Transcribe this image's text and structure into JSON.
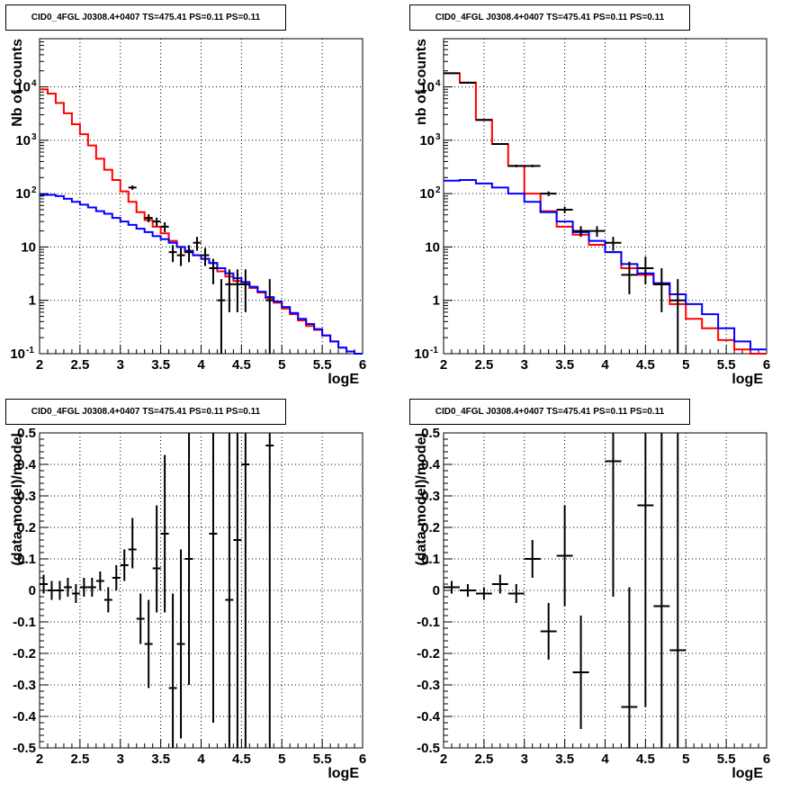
{
  "panels": [
    {
      "title": "CID0_4FGL J0308.4+0407 TS=475.41 PS=0.11 PS=0.11"
    },
    {
      "title": "CID0_4FGL J0308.4+0407 TS=475.41 PS=0.11 PS=0.11"
    },
    {
      "title": "CID0_4FGL J0308.4+0407 TS=475.41 PS=0.11 PS=0.11"
    },
    {
      "title": "CID0_4FGL J0308.4+0407 TS=475.41 PS=0.11 PS=0.11"
    }
  ],
  "colors": {
    "total_model": "#ff0000",
    "background_model": "#0000ff",
    "data": "#000000"
  },
  "chart_data": [
    {
      "type": "line",
      "title": "CID0_4FGL J0308.4+0407 TS=475.41 PS=0.11 PS=0.11",
      "xlabel": "logE",
      "ylabel": "Nb of counts",
      "xlim": [
        2,
        6
      ],
      "ylim": [
        0.1,
        80000
      ],
      "yscale": "log",
      "grid": true,
      "xticks": [
        "2",
        "2.5",
        "3",
        "3.5",
        "4",
        "4.5",
        "5",
        "5.5",
        "6"
      ],
      "yticks": [
        {
          "v": 0.1,
          "label": "10",
          "exp": "-1"
        },
        {
          "v": 1,
          "label": "1"
        },
        {
          "v": 10,
          "label": "10"
        },
        {
          "v": 100,
          "label": "10",
          "exp": "2"
        },
        {
          "v": 1000,
          "label": "10",
          "exp": "3"
        },
        {
          "v": 10000,
          "label": "10",
          "exp": "4"
        }
      ],
      "bin_width": 0.1,
      "series": [
        {
          "style": "step",
          "color": "#ff0000",
          "x": [
            2.05,
            2.15,
            2.25,
            2.35,
            2.45,
            2.55,
            2.65,
            2.75,
            2.85,
            2.95,
            3.05,
            3.15,
            3.25,
            3.35,
            3.45,
            3.55,
            3.65,
            3.75,
            3.85,
            3.95,
            4.05,
            4.15,
            4.25,
            4.35,
            4.45,
            4.55,
            4.65,
            4.75,
            4.85,
            4.95,
            5.05,
            5.15,
            5.25,
            5.35,
            5.45,
            5.55,
            5.65,
            5.75,
            5.85,
            5.95
          ],
          "values": [
            9000,
            7500,
            5000,
            3200,
            2000,
            1300,
            800,
            450,
            280,
            180,
            110,
            70,
            45,
            32,
            24,
            18,
            13,
            10,
            8,
            7,
            6,
            5,
            3.5,
            2.8,
            2.3,
            2,
            1.7,
            1.4,
            1.1,
            0.9,
            0.7,
            0.55,
            0.42,
            0.33,
            0.28,
            0.22,
            0.17,
            0.13,
            0.11,
            0.1
          ]
        },
        {
          "style": "step",
          "color": "#0000ff",
          "x": [
            2.05,
            2.15,
            2.25,
            2.35,
            2.45,
            2.55,
            2.65,
            2.75,
            2.85,
            2.95,
            3.05,
            3.15,
            3.25,
            3.35,
            3.45,
            3.55,
            3.65,
            3.75,
            3.85,
            3.95,
            4.05,
            4.15,
            4.25,
            4.35,
            4.45,
            4.55,
            4.65,
            4.75,
            4.85,
            4.95,
            5.05,
            5.15,
            5.25,
            5.35,
            5.45,
            5.55,
            5.65,
            5.75,
            5.85,
            5.95
          ],
          "values": [
            95,
            95,
            90,
            80,
            70,
            62,
            55,
            47,
            42,
            35,
            30,
            26,
            22,
            19,
            16,
            14,
            12,
            10,
            8.5,
            7,
            6,
            5,
            4,
            3.2,
            2.6,
            2.2,
            1.8,
            1.45,
            1.15,
            0.95,
            0.75,
            0.58,
            0.45,
            0.36,
            0.29,
            0.22,
            0.17,
            0.13,
            0.11,
            0.1
          ]
        },
        {
          "style": "errorbar",
          "color": "#000000",
          "x": [
            3.15,
            3.35,
            3.45,
            3.55,
            3.65,
            3.75,
            3.85,
            3.95,
            4.05,
            4.15,
            4.25,
            4.35,
            4.45,
            4.55,
            4.85
          ],
          "values": [
            130,
            35,
            30,
            24,
            8,
            7,
            8,
            12,
            7,
            4,
            1,
            2,
            2,
            2,
            1
          ],
          "err_low": [
            12,
            6,
            5.5,
            5,
            2.8,
            2.6,
            2.8,
            3.5,
            2.6,
            2,
            0.9,
            1.4,
            1.4,
            1.4,
            0.9
          ],
          "err_high": [
            12,
            6,
            5.5,
            5,
            2.8,
            2.6,
            2.8,
            3.5,
            2.6,
            2,
            1.5,
            1.8,
            1.8,
            1.8,
            1.5
          ]
        }
      ]
    },
    {
      "type": "line",
      "title": "CID0_4FGL J0308.4+0407 TS=475.41 PS=0.11 PS=0.11",
      "xlabel": "logE",
      "ylabel": "nb of counts",
      "xlim": [
        2,
        6
      ],
      "ylim": [
        0.1,
        80000
      ],
      "yscale": "log",
      "grid": true,
      "xticks": [
        "2",
        "2.5",
        "3",
        "3.5",
        "4",
        "4.5",
        "5",
        "5.5",
        "6"
      ],
      "yticks": [
        {
          "v": 0.1,
          "label": "10",
          "exp": "-1"
        },
        {
          "v": 1,
          "label": "1"
        },
        {
          "v": 10,
          "label": "10"
        },
        {
          "v": 100,
          "label": "10",
          "exp": "2"
        },
        {
          "v": 1000,
          "label": "10",
          "exp": "3"
        },
        {
          "v": 10000,
          "label": "10",
          "exp": "4"
        }
      ],
      "bin_width": 0.2,
      "series": [
        {
          "style": "step",
          "color": "#ff0000",
          "x": [
            2.1,
            2.3,
            2.5,
            2.7,
            2.9,
            3.1,
            3.3,
            3.5,
            3.7,
            3.9,
            4.1,
            4.3,
            4.5,
            4.7,
            4.9,
            5.1,
            5.3,
            5.5,
            5.7,
            5.9
          ],
          "values": [
            18000,
            12000,
            2400,
            850,
            330,
            100,
            47,
            24,
            17,
            11,
            8,
            4,
            3,
            2,
            0.85,
            0.45,
            0.3,
            0.18,
            0.12,
            0.1
          ]
        },
        {
          "style": "step",
          "color": "#0000ff",
          "x": [
            2.1,
            2.3,
            2.5,
            2.7,
            2.9,
            3.1,
            3.3,
            3.5,
            3.7,
            3.9,
            4.1,
            4.3,
            4.5,
            4.7,
            4.9,
            5.1,
            5.3,
            5.5,
            5.7,
            5.9
          ],
          "values": [
            175,
            180,
            155,
            130,
            100,
            70,
            45,
            30,
            19,
            13,
            8,
            4.8,
            3.2,
            2.1,
            1.3,
            0.85,
            0.55,
            0.3,
            0.17,
            0.12
          ]
        },
        {
          "style": "errorbar",
          "color": "#000000",
          "x": [
            2.1,
            2.3,
            2.5,
            2.7,
            2.9,
            3.1,
            3.3,
            3.5,
            3.7,
            3.9,
            4.1,
            4.3,
            4.5,
            4.7,
            4.9
          ],
          "values": [
            18000,
            12000,
            2400,
            850,
            330,
            330,
            100,
            50,
            20,
            20,
            12,
            3,
            4,
            2,
            1
          ],
          "err_low": [
            140,
            110,
            50,
            30,
            18,
            18,
            10,
            7,
            4.5,
            4.5,
            3.5,
            1.7,
            2,
            1.4,
            0.9
          ],
          "err_high": [
            140,
            110,
            50,
            30,
            18,
            18,
            10,
            7,
            4.5,
            4.5,
            3.5,
            2.3,
            2.6,
            2,
            1.5
          ]
        }
      ]
    },
    {
      "type": "scatter",
      "title": "CID0_4FGL J0308.4+0407 TS=475.41 PS=0.11 PS=0.11",
      "xlabel": "logE",
      "ylabel": "(data-model)/model",
      "xlim": [
        2,
        6
      ],
      "ylim": [
        -0.5,
        0.5
      ],
      "grid": true,
      "xticks": [
        "2",
        "2.5",
        "3",
        "3.5",
        "4",
        "4.5",
        "5",
        "5.5",
        "6"
      ],
      "yticks": [
        {
          "v": -0.5,
          "label": "-0.5"
        },
        {
          "v": -0.4,
          "label": "-0.4"
        },
        {
          "v": -0.3,
          "label": "-0.3"
        },
        {
          "v": -0.2,
          "label": "-0.2"
        },
        {
          "v": -0.1,
          "label": "-0.1"
        },
        {
          "v": 0,
          "label": "0"
        },
        {
          "v": 0.1,
          "label": "0.1"
        },
        {
          "v": 0.2,
          "label": "0.2"
        },
        {
          "v": 0.3,
          "label": "0.3"
        },
        {
          "v": 0.4,
          "label": "0.4"
        },
        {
          "v": 0.5,
          "label": "0.5"
        }
      ],
      "bin_width": 0.1,
      "series": [
        {
          "style": "errorbar",
          "color": "#000000",
          "x": [
            2.05,
            2.15,
            2.25,
            2.35,
            2.45,
            2.55,
            2.65,
            2.75,
            2.85,
            2.95,
            3.05,
            3.15,
            3.25,
            3.35,
            3.45,
            3.55,
            3.65,
            3.75,
            3.85,
            4.15,
            4.35,
            4.45,
            4.55,
            4.85
          ],
          "values": [
            0.02,
            0,
            0,
            0.01,
            -0.01,
            0.01,
            0.01,
            0.03,
            -0.03,
            0.04,
            0.08,
            0.13,
            -0.09,
            -0.17,
            0.07,
            0.18,
            -0.31,
            -0.17,
            0.1,
            0.18,
            -0.03,
            0.16,
            0.4,
            0.46
          ],
          "err_low": [
            0.03,
            0.03,
            0.03,
            0.03,
            0.03,
            0.03,
            0.03,
            0.03,
            0.04,
            0.04,
            0.05,
            0.06,
            0.08,
            0.14,
            0.14,
            0.25,
            0.25,
            0.3,
            0.4,
            0.6,
            0.6,
            0.7,
            0.9,
            1.0
          ],
          "err_high": [
            0.03,
            0.03,
            0.03,
            0.03,
            0.03,
            0.03,
            0.03,
            0.03,
            0.04,
            0.04,
            0.05,
            0.1,
            0.08,
            0.14,
            0.2,
            0.25,
            0.3,
            0.3,
            0.4,
            0.6,
            0.6,
            0.7,
            0.9,
            1.0
          ]
        }
      ]
    },
    {
      "type": "scatter",
      "title": "CID0_4FGL J0308.4+0407 TS=475.41 PS=0.11 PS=0.11",
      "xlabel": "logE",
      "ylabel": "(data-model)/model",
      "xlim": [
        2,
        6
      ],
      "ylim": [
        -0.5,
        0.5
      ],
      "grid": true,
      "xticks": [
        "2",
        "2.5",
        "3",
        "3.5",
        "4",
        "4.5",
        "5",
        "5.5",
        "6"
      ],
      "yticks": [
        {
          "v": -0.5,
          "label": "-0.5"
        },
        {
          "v": -0.4,
          "label": "-0.4"
        },
        {
          "v": -0.3,
          "label": "-0.3"
        },
        {
          "v": -0.2,
          "label": "-0.2"
        },
        {
          "v": -0.1,
          "label": "-0.1"
        },
        {
          "v": 0,
          "label": "0"
        },
        {
          "v": 0.1,
          "label": "0.1"
        },
        {
          "v": 0.2,
          "label": "0.2"
        },
        {
          "v": 0.3,
          "label": "0.3"
        },
        {
          "v": 0.4,
          "label": "0.4"
        },
        {
          "v": 0.5,
          "label": "0.5"
        }
      ],
      "bin_width": 0.2,
      "series": [
        {
          "style": "errorbar",
          "color": "#000000",
          "x": [
            2.1,
            2.3,
            2.5,
            2.7,
            2.9,
            3.1,
            3.3,
            3.5,
            3.7,
            4.1,
            4.3,
            4.5,
            4.7,
            4.9
          ],
          "values": [
            0.01,
            0,
            -0.01,
            0.02,
            -0.01,
            0.1,
            -0.13,
            0.11,
            -0.26,
            0.41,
            -0.37,
            0.27,
            -0.05,
            -0.19
          ],
          "err_low": [
            0.02,
            0.02,
            0.02,
            0.03,
            0.03,
            0.06,
            0.09,
            0.16,
            0.18,
            0.43,
            0.5,
            0.64,
            0.8,
            0.9
          ],
          "err_high": [
            0.02,
            0.02,
            0.02,
            0.03,
            0.03,
            0.06,
            0.09,
            0.16,
            0.18,
            0.43,
            0.38,
            0.64,
            0.8,
            0.9
          ]
        }
      ]
    }
  ]
}
